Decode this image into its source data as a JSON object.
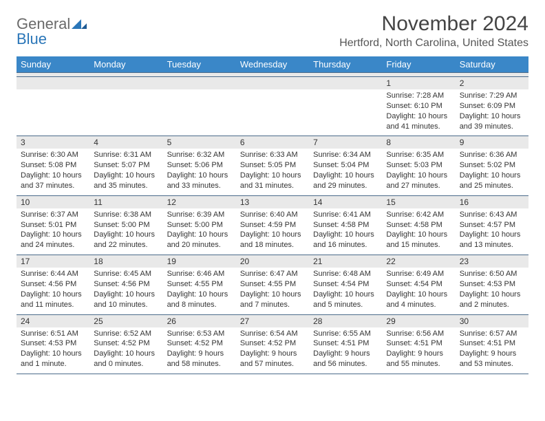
{
  "logo": {
    "text_general": "General",
    "text_blue": "Blue"
  },
  "header": {
    "title": "November 2024",
    "subtitle": "Hertford, North Carolina, United States"
  },
  "colors": {
    "header_bg": "#3a87c8",
    "daynum_bg": "#e9e9e9",
    "rule": "#4a6a8a",
    "text": "#333333"
  },
  "weekdays": [
    "Sunday",
    "Monday",
    "Tuesday",
    "Wednesday",
    "Thursday",
    "Friday",
    "Saturday"
  ],
  "weeks": [
    [
      null,
      null,
      null,
      null,
      null,
      {
        "n": "1",
        "sunrise": "Sunrise: 7:28 AM",
        "sunset": "Sunset: 6:10 PM",
        "daylight": "Daylight: 10 hours and 41 minutes."
      },
      {
        "n": "2",
        "sunrise": "Sunrise: 7:29 AM",
        "sunset": "Sunset: 6:09 PM",
        "daylight": "Daylight: 10 hours and 39 minutes."
      }
    ],
    [
      {
        "n": "3",
        "sunrise": "Sunrise: 6:30 AM",
        "sunset": "Sunset: 5:08 PM",
        "daylight": "Daylight: 10 hours and 37 minutes."
      },
      {
        "n": "4",
        "sunrise": "Sunrise: 6:31 AM",
        "sunset": "Sunset: 5:07 PM",
        "daylight": "Daylight: 10 hours and 35 minutes."
      },
      {
        "n": "5",
        "sunrise": "Sunrise: 6:32 AM",
        "sunset": "Sunset: 5:06 PM",
        "daylight": "Daylight: 10 hours and 33 minutes."
      },
      {
        "n": "6",
        "sunrise": "Sunrise: 6:33 AM",
        "sunset": "Sunset: 5:05 PM",
        "daylight": "Daylight: 10 hours and 31 minutes."
      },
      {
        "n": "7",
        "sunrise": "Sunrise: 6:34 AM",
        "sunset": "Sunset: 5:04 PM",
        "daylight": "Daylight: 10 hours and 29 minutes."
      },
      {
        "n": "8",
        "sunrise": "Sunrise: 6:35 AM",
        "sunset": "Sunset: 5:03 PM",
        "daylight": "Daylight: 10 hours and 27 minutes."
      },
      {
        "n": "9",
        "sunrise": "Sunrise: 6:36 AM",
        "sunset": "Sunset: 5:02 PM",
        "daylight": "Daylight: 10 hours and 25 minutes."
      }
    ],
    [
      {
        "n": "10",
        "sunrise": "Sunrise: 6:37 AM",
        "sunset": "Sunset: 5:01 PM",
        "daylight": "Daylight: 10 hours and 24 minutes."
      },
      {
        "n": "11",
        "sunrise": "Sunrise: 6:38 AM",
        "sunset": "Sunset: 5:00 PM",
        "daylight": "Daylight: 10 hours and 22 minutes."
      },
      {
        "n": "12",
        "sunrise": "Sunrise: 6:39 AM",
        "sunset": "Sunset: 5:00 PM",
        "daylight": "Daylight: 10 hours and 20 minutes."
      },
      {
        "n": "13",
        "sunrise": "Sunrise: 6:40 AM",
        "sunset": "Sunset: 4:59 PM",
        "daylight": "Daylight: 10 hours and 18 minutes."
      },
      {
        "n": "14",
        "sunrise": "Sunrise: 6:41 AM",
        "sunset": "Sunset: 4:58 PM",
        "daylight": "Daylight: 10 hours and 16 minutes."
      },
      {
        "n": "15",
        "sunrise": "Sunrise: 6:42 AM",
        "sunset": "Sunset: 4:58 PM",
        "daylight": "Daylight: 10 hours and 15 minutes."
      },
      {
        "n": "16",
        "sunrise": "Sunrise: 6:43 AM",
        "sunset": "Sunset: 4:57 PM",
        "daylight": "Daylight: 10 hours and 13 minutes."
      }
    ],
    [
      {
        "n": "17",
        "sunrise": "Sunrise: 6:44 AM",
        "sunset": "Sunset: 4:56 PM",
        "daylight": "Daylight: 10 hours and 11 minutes."
      },
      {
        "n": "18",
        "sunrise": "Sunrise: 6:45 AM",
        "sunset": "Sunset: 4:56 PM",
        "daylight": "Daylight: 10 hours and 10 minutes."
      },
      {
        "n": "19",
        "sunrise": "Sunrise: 6:46 AM",
        "sunset": "Sunset: 4:55 PM",
        "daylight": "Daylight: 10 hours and 8 minutes."
      },
      {
        "n": "20",
        "sunrise": "Sunrise: 6:47 AM",
        "sunset": "Sunset: 4:55 PM",
        "daylight": "Daylight: 10 hours and 7 minutes."
      },
      {
        "n": "21",
        "sunrise": "Sunrise: 6:48 AM",
        "sunset": "Sunset: 4:54 PM",
        "daylight": "Daylight: 10 hours and 5 minutes."
      },
      {
        "n": "22",
        "sunrise": "Sunrise: 6:49 AM",
        "sunset": "Sunset: 4:54 PM",
        "daylight": "Daylight: 10 hours and 4 minutes."
      },
      {
        "n": "23",
        "sunrise": "Sunrise: 6:50 AM",
        "sunset": "Sunset: 4:53 PM",
        "daylight": "Daylight: 10 hours and 2 minutes."
      }
    ],
    [
      {
        "n": "24",
        "sunrise": "Sunrise: 6:51 AM",
        "sunset": "Sunset: 4:53 PM",
        "daylight": "Daylight: 10 hours and 1 minute."
      },
      {
        "n": "25",
        "sunrise": "Sunrise: 6:52 AM",
        "sunset": "Sunset: 4:52 PM",
        "daylight": "Daylight: 10 hours and 0 minutes."
      },
      {
        "n": "26",
        "sunrise": "Sunrise: 6:53 AM",
        "sunset": "Sunset: 4:52 PM",
        "daylight": "Daylight: 9 hours and 58 minutes."
      },
      {
        "n": "27",
        "sunrise": "Sunrise: 6:54 AM",
        "sunset": "Sunset: 4:52 PM",
        "daylight": "Daylight: 9 hours and 57 minutes."
      },
      {
        "n": "28",
        "sunrise": "Sunrise: 6:55 AM",
        "sunset": "Sunset: 4:51 PM",
        "daylight": "Daylight: 9 hours and 56 minutes."
      },
      {
        "n": "29",
        "sunrise": "Sunrise: 6:56 AM",
        "sunset": "Sunset: 4:51 PM",
        "daylight": "Daylight: 9 hours and 55 minutes."
      },
      {
        "n": "30",
        "sunrise": "Sunrise: 6:57 AM",
        "sunset": "Sunset: 4:51 PM",
        "daylight": "Daylight: 9 hours and 53 minutes."
      }
    ]
  ]
}
